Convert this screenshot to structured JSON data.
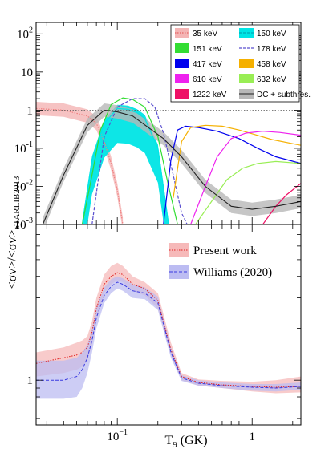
{
  "chart_data": [
    {
      "type": "line",
      "panel": "top",
      "x_scale": "log",
      "y_scale": "log",
      "xlim": [
        0.025,
        2.3
      ],
      "ylim": [
        0.001,
        200
      ],
      "y_ticks": [
        {
          "v": 0.001,
          "b": "10",
          "e": "-3"
        },
        {
          "v": 0.01,
          "b": "10",
          "e": "-2"
        },
        {
          "v": 0.1,
          "b": "10",
          "e": "-1"
        },
        {
          "v": 1,
          "b": "1",
          "e": ""
        },
        {
          "v": 10,
          "b": "10",
          "e": ""
        },
        {
          "v": 100,
          "b": "10",
          "e": "2"
        }
      ],
      "reference_line": 1,
      "legend_position": "top-right",
      "legend": [
        {
          "label": "35 keV",
          "color": "#f08080",
          "style": "band-dotted"
        },
        {
          "label": "150 keV",
          "color": "#00e5e5",
          "style": "band-dashed"
        },
        {
          "label": "151 keV",
          "color": "#33dd33",
          "style": "box"
        },
        {
          "label": "178 keV",
          "color": "#5a4fcf",
          "style": "dashed"
        },
        {
          "label": "417 keV",
          "color": "#0000ee",
          "style": "box"
        },
        {
          "label": "458 keV",
          "color": "#f5b000",
          "style": "box"
        },
        {
          "label": "610 keV",
          "color": "#ee22ee",
          "style": "box"
        },
        {
          "label": "632 keV",
          "color": "#99ee55",
          "style": "box"
        },
        {
          "label": "1222 keV",
          "color": "#ee1166",
          "style": "box"
        },
        {
          "label": "DC + subthres.",
          "color": "#222222",
          "style": "band-solid"
        }
      ],
      "series": [
        {
          "name": "35 keV",
          "color": "#f08080",
          "band": true,
          "band_color": "#f4b4b4",
          "x": [
            0.025,
            0.04,
            0.06,
            0.07,
            0.08,
            0.09,
            0.1,
            0.11
          ],
          "y": [
            1.1,
            1.0,
            0.7,
            0.45,
            0.15,
            0.04,
            0.008,
            0.001
          ]
        },
        {
          "name": "150 keV",
          "color": "#00e5e5",
          "band": true,
          "band_color": "#00e5e5",
          "x": [
            0.055,
            0.065,
            0.08,
            0.1,
            0.12,
            0.14,
            0.16,
            0.2,
            0.24
          ],
          "y": [
            0.001,
            0.05,
            0.45,
            1.1,
            1.05,
            0.85,
            0.6,
            0.1,
            0.001
          ]
        },
        {
          "name": "151 keV",
          "color": "#33dd33",
          "x": [
            0.055,
            0.065,
            0.075,
            0.09,
            0.11,
            0.13,
            0.16,
            0.2,
            0.24,
            0.28
          ],
          "y": [
            0.001,
            0.02,
            0.3,
            1.4,
            2.1,
            1.9,
            1.2,
            0.2,
            0.01,
            0.001
          ]
        },
        {
          "name": "178 keV",
          "color": "#5a4fcf",
          "style": "dashed",
          "x": [
            0.065,
            0.08,
            0.1,
            0.13,
            0.16,
            0.19,
            0.22,
            0.26,
            0.3,
            0.33
          ],
          "y": [
            0.001,
            0.2,
            1.2,
            2.0,
            2.0,
            1.2,
            0.25,
            0.02,
            0.002,
            0.001
          ]
        },
        {
          "name": "417 keV",
          "color": "#0000ee",
          "x": [
            0.22,
            0.25,
            0.28,
            0.32,
            0.4,
            0.55,
            0.8,
            1.1,
            1.5,
            2.3
          ],
          "y": [
            0.001,
            0.05,
            0.3,
            0.38,
            0.35,
            0.28,
            0.18,
            0.1,
            0.06,
            0.04
          ]
        },
        {
          "name": "458 keV",
          "color": "#f5b000",
          "x": [
            0.26,
            0.3,
            0.35,
            0.45,
            0.6,
            0.8,
            1.0,
            1.4,
            2.3
          ],
          "y": [
            0.005,
            0.15,
            0.35,
            0.4,
            0.38,
            0.3,
            0.24,
            0.17,
            0.12
          ]
        },
        {
          "name": "610 keV",
          "color": "#ee22ee",
          "x": [
            0.35,
            0.45,
            0.55,
            0.7,
            0.9,
            1.2,
            1.6,
            2.3
          ],
          "y": [
            0.001,
            0.01,
            0.06,
            0.18,
            0.25,
            0.28,
            0.26,
            0.22
          ]
        },
        {
          "name": "632 keV",
          "color": "#99ee55",
          "x": [
            0.38,
            0.5,
            0.65,
            0.85,
            1.1,
            1.5,
            2.3
          ],
          "y": [
            0.001,
            0.004,
            0.015,
            0.03,
            0.04,
            0.045,
            0.04
          ]
        },
        {
          "name": "1222 keV",
          "color": "#ee1166",
          "x": [
            1.2,
            1.5,
            1.8,
            2.3
          ],
          "y": [
            0.001,
            0.003,
            0.006,
            0.012
          ]
        },
        {
          "name": "DC + subthres.",
          "color": "#222222",
          "band": true,
          "band_color": "#b8b8b8",
          "x": [
            0.028,
            0.04,
            0.06,
            0.08,
            0.1,
            0.13,
            0.17,
            0.22,
            0.3,
            0.45,
            0.7,
            1.0,
            1.5,
            2.3
          ],
          "y": [
            0.001,
            0.02,
            0.4,
            1.0,
            0.9,
            0.7,
            0.35,
            0.18,
            0.06,
            0.01,
            0.003,
            0.0025,
            0.003,
            0.004
          ]
        }
      ]
    },
    {
      "type": "line",
      "panel": "bottom",
      "x_scale": "log",
      "y_scale": "log",
      "xlim": [
        0.025,
        2.3
      ],
      "ylim": [
        0.55,
        8.0
      ],
      "ylabel": "<σv>/<σv>",
      "ylabel_sub": "STARLIB2013",
      "xlabel": "T",
      "xlabel_sub": "9",
      "xlabel_unit": " (GK)",
      "x_ticks": [
        {
          "v": 0.1,
          "b": "10",
          "e": "−1"
        },
        {
          "v": 1,
          "b": "1",
          "e": ""
        }
      ],
      "y_ticks": [
        {
          "v": 1,
          "b": "1",
          "e": ""
        }
      ],
      "legend_position": "top-right",
      "series": [
        {
          "name": "Present work",
          "color": "#e02020",
          "band_color": "#f6b9b9",
          "style": "dotted",
          "x": [
            0.025,
            0.04,
            0.05,
            0.055,
            0.06,
            0.065,
            0.07,
            0.08,
            0.09,
            0.1,
            0.11,
            0.13,
            0.16,
            0.2,
            0.25,
            0.3,
            0.4,
            0.6,
            1.0,
            1.5,
            2.3
          ],
          "y": [
            1.25,
            1.35,
            1.4,
            1.45,
            1.55,
            1.9,
            2.6,
            3.6,
            4.0,
            4.2,
            4.1,
            3.6,
            3.4,
            2.9,
            1.5,
            1.05,
            0.97,
            0.94,
            0.92,
            0.91,
            0.92
          ],
          "lower": [
            1.05,
            1.1,
            1.15,
            1.2,
            1.3,
            1.6,
            2.2,
            3.2,
            3.6,
            3.8,
            3.7,
            3.3,
            3.1,
            2.6,
            1.4,
            1.0,
            0.93,
            0.9,
            0.86,
            0.84,
            0.85
          ],
          "upper": [
            1.45,
            1.55,
            1.65,
            1.7,
            1.8,
            2.2,
            3.0,
            4.1,
            4.6,
            4.8,
            4.6,
            4.0,
            3.7,
            3.2,
            1.65,
            1.1,
            1.01,
            0.99,
            0.98,
            1.0,
            1.05
          ]
        },
        {
          "name": "Williams (2020)",
          "color": "#3a3ae0",
          "band_color": "#bcbcf2",
          "style": "dashed",
          "x": [
            0.025,
            0.04,
            0.05,
            0.055,
            0.06,
            0.065,
            0.07,
            0.08,
            0.09,
            0.1,
            0.11,
            0.13,
            0.16,
            0.2,
            0.25,
            0.3,
            0.4,
            0.6,
            1.0,
            1.5,
            2.3
          ],
          "y": [
            1.0,
            1.0,
            1.05,
            1.15,
            1.35,
            1.7,
            2.3,
            3.1,
            3.5,
            3.7,
            3.6,
            3.3,
            3.2,
            2.8,
            1.45,
            1.03,
            0.96,
            0.93,
            0.91,
            0.9,
            0.92
          ],
          "lower": [
            0.78,
            0.78,
            0.8,
            0.9,
            1.1,
            1.45,
            2.0,
            2.8,
            3.2,
            3.4,
            3.3,
            3.0,
            2.95,
            2.55,
            1.35,
            0.99,
            0.93,
            0.9,
            0.87,
            0.86,
            0.88
          ],
          "upper": [
            1.3,
            1.3,
            1.35,
            1.45,
            1.6,
            2.0,
            2.65,
            3.45,
            3.85,
            4.0,
            3.9,
            3.6,
            3.45,
            3.05,
            1.55,
            1.07,
            1.0,
            0.97,
            0.95,
            0.95,
            0.97
          ]
        }
      ]
    }
  ]
}
